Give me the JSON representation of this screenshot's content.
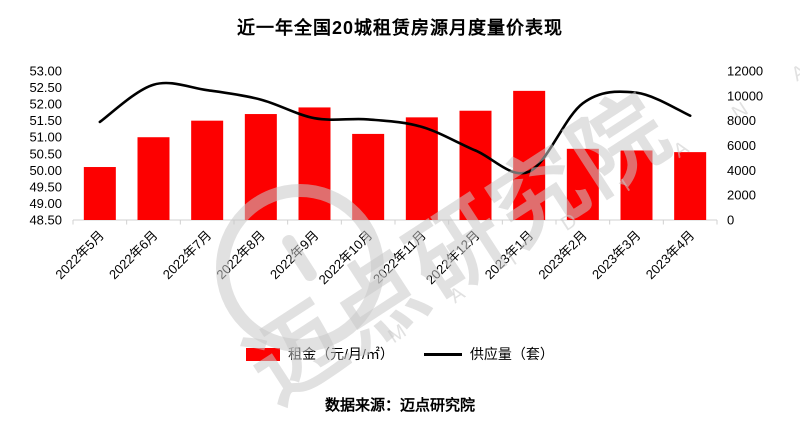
{
  "title": "近一年全国20城租赁房源月度量价表现",
  "footer": {
    "source": "数据来源：迈点研究院"
  },
  "watermark": {
    "text": "迈点研究院",
    "subtext": "M A I D I A N  A C A D E M Y"
  },
  "legend": [
    {
      "label": "租金（元/月/㎡）",
      "type": "bar",
      "color": "#fd0000"
    },
    {
      "label": "供应量（套）",
      "type": "line",
      "color": "#000000"
    }
  ],
  "chart_data": {
    "type": "bar",
    "title": "近一年全国20城租赁房源月度量价表现",
    "categories": [
      "2022年5月",
      "2022年6月",
      "2022年7月",
      "2022年8月",
      "2022年9月",
      "2022年10月",
      "2022年11月",
      "2022年12月",
      "2023年1月",
      "2023年2月",
      "2023年3月",
      "2023年4月"
    ],
    "series": [
      {
        "name": "租金（元/月/㎡）",
        "type": "bar",
        "axis": "left",
        "color": "#fd0000",
        "values": [
          50.1,
          51.0,
          51.5,
          51.7,
          51.9,
          51.1,
          51.6,
          51.8,
          52.4,
          50.65,
          50.6,
          50.55
        ]
      },
      {
        "name": "供应量（套）",
        "type": "line",
        "axis": "right",
        "color": "#000000",
        "smooth": true,
        "values": [
          7900,
          10900,
          10450,
          9700,
          8200,
          8100,
          7500,
          5600,
          3900,
          9400,
          10250,
          8400
        ]
      }
    ],
    "left_axis": {
      "min": 48.5,
      "max": 53.0,
      "step": 0.5,
      "ticks": [
        "53.00",
        "52.50",
        "52.00",
        "51.50",
        "51.00",
        "50.50",
        "50.00",
        "49.50",
        "49.00",
        "48.50"
      ]
    },
    "right_axis": {
      "min": 0,
      "max": 12000,
      "step": 2000,
      "ticks": [
        "12000",
        "10000",
        "8000",
        "6000",
        "4000",
        "2000",
        "0"
      ]
    },
    "grid": false,
    "legend_position": "bottom",
    "x_label_rotation": -45
  }
}
